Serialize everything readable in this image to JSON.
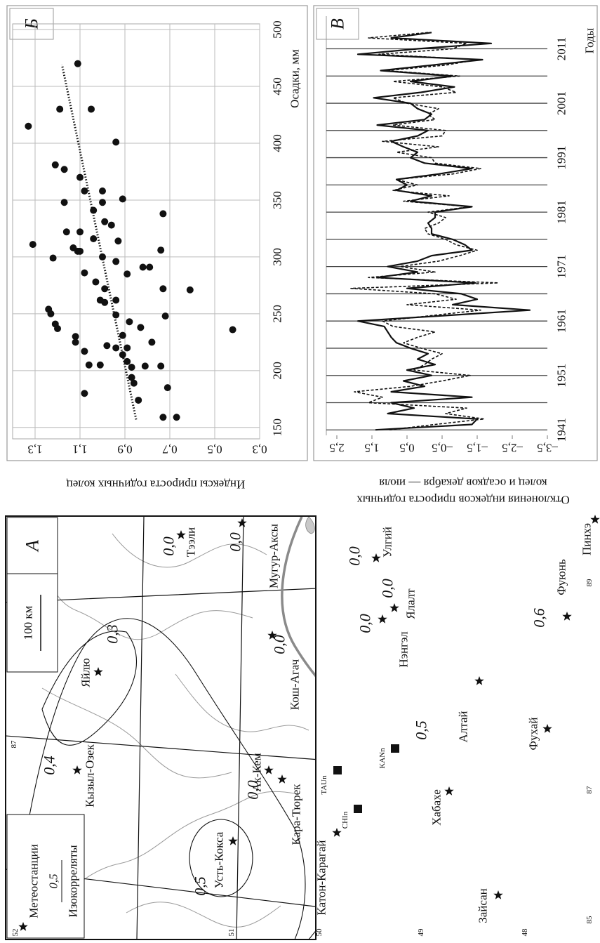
{
  "chart_data": [
    {
      "type": "scatter",
      "panel_label": "Б",
      "x_label": "Осадки, мм",
      "y_label": "Индексы прироста годичных колец",
      "x": [
        470,
        430,
        430,
        415,
        401,
        381,
        377,
        370,
        358,
        358,
        351,
        348,
        348,
        341,
        338,
        331,
        328,
        322,
        322,
        316,
        314,
        311,
        308,
        305,
        305,
        306,
        300,
        299,
        296,
        291,
        291,
        286,
        285,
        278,
        272,
        272,
        271,
        262,
        260,
        262,
        254,
        250,
        249,
        248,
        243,
        237,
        241,
        238,
        236,
        231,
        230,
        225,
        225,
        222,
        220,
        220,
        217,
        214,
        208,
        203,
        204,
        205,
        205,
        204,
        194,
        189,
        180,
        185,
        174,
        159,
        159
      ],
      "values": [
        1.11,
        1.19,
        1.05,
        1.33,
        0.94,
        1.21,
        1.17,
        1.1,
        1.08,
        1.0,
        0.91,
        1.17,
        1.0,
        1.04,
        0.73,
        0.99,
        0.96,
        1.16,
        1.1,
        1.04,
        0.93,
        1.31,
        1.13,
        1.11,
        1.1,
        0.74,
        1.0,
        1.22,
        0.94,
        0.82,
        0.79,
        1.08,
        0.89,
        1.03,
        0.99,
        0.73,
        0.61,
        1.01,
        0.99,
        0.94,
        1.24,
        1.23,
        0.94,
        0.72,
        0.88,
        1.2,
        1.21,
        0.83,
        0.42,
        0.91,
        1.12,
        1.12,
        0.78,
        0.98,
        0.94,
        0.89,
        1.08,
        0.91,
        0.89,
        0.87,
        0.74,
        1.06,
        1.01,
        0.81,
        0.87,
        0.86,
        1.08,
        0.71,
        0.84,
        0.73,
        0.67
      ],
      "color": "#111111",
      "trend": {
        "x": [
          157,
          469
        ],
        "values": [
          0.85,
          1.18
        ]
      },
      "xlim": [
        140,
        505
      ],
      "xticks": [
        150,
        200,
        250,
        300,
        350,
        400,
        450,
        500
      ],
      "ylim": [
        0.3,
        1.4
      ],
      "yticks": [
        {
          "value": 1.3,
          "label": "1,3"
        },
        {
          "value": 1.1,
          "label": "1,1"
        },
        {
          "value": 0.9,
          "label": "0,9"
        },
        {
          "value": 0.7,
          "label": "0,7"
        },
        {
          "value": 0.5,
          "label": "0,5"
        },
        {
          "value": 0.3,
          "label": "0,3"
        }
      ],
      "grid": true
    },
    {
      "type": "line",
      "panel_label": "В",
      "x_label": "Годы",
      "y_label": [
        "Отклонения индексов прироста годичных",
        "колец и осадков декабря — июля"
      ],
      "x": [
        1941,
        1942,
        1943,
        1944,
        1945,
        1946,
        1947,
        1948,
        1949,
        1950,
        1951,
        1952,
        1953,
        1954,
        1955,
        1956,
        1957,
        1958,
        1959,
        1960,
        1961,
        1962,
        1963,
        1964,
        1965,
        1966,
        1967,
        1968,
        1969,
        1970,
        1971,
        1972,
        1973,
        1974,
        1975,
        1976,
        1977,
        1978,
        1979,
        1980,
        1981,
        1982,
        1983,
        1984,
        1985,
        1986,
        1987,
        1988,
        1989,
        1990,
        1991,
        1992,
        1993,
        1994,
        1995,
        1996,
        1997,
        1998,
        1999,
        2000,
        2001,
        2002,
        2003,
        2004,
        2005,
        2006,
        2007,
        2008,
        2009,
        2010,
        2011,
        2012,
        2013,
        2014
      ],
      "series": [
        {
          "color": "#111111",
          "style": "solid",
          "values": [
            1.4,
            -1.35,
            -1.5,
            1.05,
            0.3,
            0.95,
            -1.35,
            0.95,
            0.0,
            0.6,
            -0.2,
            0.5,
            -0.3,
            0.2,
            -0.1,
            0.4,
            0.8,
            0.95,
            1.05,
            1.15,
            1.9,
            -0.6,
            -3.0,
            -0.8,
            -1.5,
            -1.05,
            0.5,
            -1.45,
            1.35,
            0.2,
            1.05,
            0.2,
            -0.2,
            -1.35,
            -1.15,
            -0.8,
            -0.2,
            -0.2,
            -0.1,
            -0.3,
            -0.3,
            -1.35,
            0.4,
            -0.2,
            0.8,
            0.5,
            0.8,
            -0.4,
            -1.35,
            0.0,
            0.4,
            0.2,
            0.6,
            0.95,
            0.2,
            -0.1,
            1.35,
            0.0,
            -0.2,
            0.2,
            0.4,
            1.45,
            0.1,
            -0.85,
            0.4,
            -0.8,
            1.25,
            -0.2,
            -1.65,
            1.9,
            0.2,
            -1.9,
            0.95,
            -0.2
          ]
        },
        {
          "color": "#111111",
          "style": "dashed",
          "values": [
            1.0,
            -0.3,
            -1.7,
            -0.6,
            -1.2,
            1.6,
            1.2,
            2.0,
            0.4,
            -0.5,
            -1.3,
            0.3,
            0.0,
            -0.2,
            -0.5,
            0.1,
            0.6,
            0.2,
            -0.3,
            0.9,
            1.2,
            -0.2,
            -1.6,
            0.5,
            -0.9,
            -0.3,
            2.1,
            -2.1,
            1.6,
            -0.3,
            0.7,
            -0.4,
            -1.0,
            -1.5,
            -0.9,
            -0.6,
            -0.1,
            0.0,
            -0.4,
            -0.6,
            -0.1,
            -1.3,
            0.6,
            -0.7,
            0.9,
            0.2,
            0.8,
            -0.8,
            -1.6,
            -0.3,
            -0.2,
            0.8,
            -0.4,
            1.2,
            -0.5,
            -0.6,
            0.9,
            -0.3,
            -0.1,
            -0.4,
            0.5,
            0.9,
            -0.9,
            -0.5,
            0.9,
            -1.0,
            1.1,
            -0.6,
            -1.5,
            1.3,
            -0.8,
            -1.2,
            1.6,
            -0.1
          ]
        }
      ],
      "xlim": [
        1940,
        2017
      ],
      "xticks": [
        1941,
        1951,
        1961,
        1971,
        1981,
        1991,
        2001,
        2011
      ],
      "xgrid": [
        1941,
        1946,
        1951,
        1956,
        1961,
        1966,
        1971,
        1976,
        1981,
        1986,
        1991,
        1996,
        2001,
        2006,
        2011
      ],
      "ylim": [
        -3.5,
        2.8
      ],
      "yticks": [
        {
          "value": 2.5,
          "label": "2,5"
        },
        {
          "value": 1.5,
          "label": "1,5"
        },
        {
          "value": 0.5,
          "label": "0,5"
        },
        {
          "value": -0.5,
          "label": "–0,5"
        },
        {
          "value": -1.5,
          "label": "–1,5"
        },
        {
          "value": -2.5,
          "label": "–2,5"
        },
        {
          "value": -3.5,
          "label": "–3,5"
        }
      ],
      "grid": true
    }
  ],
  "map": {
    "panel_label": "А",
    "scale_label": "100 км",
    "legend": {
      "stations": "Метеостанции",
      "value": "0,5",
      "isolines": "Изокорреляты"
    },
    "stations": [
      "Кызыл-Озек",
      "Яйлю",
      "Усть-Кокса",
      "Ак-Кем",
      "Кара-Тюрек",
      "Катон-Карагай",
      "Кош-Агач",
      "Мугур-Аксы",
      "Тээли",
      "Улгий",
      "Ялалт",
      "Нэнгэл",
      "Хабахе",
      "Алтай",
      "Фухай",
      "Фуюнь",
      "Зайсан",
      "Пинхэ"
    ],
    "sites": [
      "TAUn",
      "CHIn",
      "KANn"
    ],
    "isolines": [
      "0,4",
      "0,3",
      "0,5",
      "0,0",
      "0,0",
      "0,0",
      "0,0",
      "0,0",
      "0,0",
      "0,0",
      "0,5",
      "0,6"
    ],
    "graticule": [
      "52",
      "51",
      "50",
      "49",
      "48",
      "87",
      "87",
      "89",
      "85"
    ]
  }
}
